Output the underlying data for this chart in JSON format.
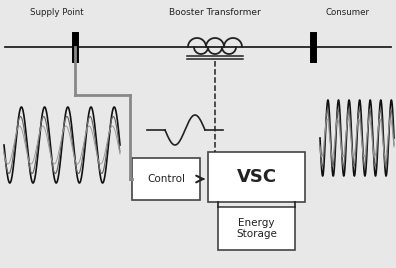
{
  "bg_color": "#e8e8e8",
  "line_color": "#222222",
  "box_border_color": "#444444",
  "labels": {
    "supply_point": "Supply Point",
    "booster_transformer": "Booster Transformer",
    "consumer": "Consumer",
    "control": "Control",
    "vsc": "VSC",
    "energy_storage": "Energy\nStorage"
  },
  "sine_color_dark": "#111111",
  "sine_color_mid": "#666666",
  "sine_color_light": "#999999"
}
